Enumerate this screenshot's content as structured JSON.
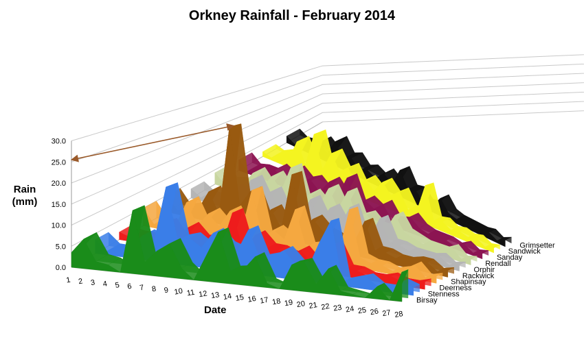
{
  "chart_data": {
    "type": "area",
    "title": "Orkney Rainfall - February 2014",
    "xlabel": "Date",
    "ylabel_line1": "Rain",
    "ylabel_line2": "(mm)",
    "ylim": [
      0,
      30
    ],
    "yticks": [
      "0.0",
      "5.0",
      "10.0",
      "15.0",
      "20.0",
      "25.0",
      "30.0"
    ],
    "categories": [
      "1",
      "2",
      "3",
      "4",
      "5",
      "6",
      "7",
      "8",
      "9",
      "10",
      "11",
      "12",
      "13",
      "14",
      "15",
      "16",
      "17",
      "18",
      "19",
      "20",
      "21",
      "22",
      "23",
      "24",
      "25",
      "26",
      "27",
      "28"
    ],
    "grid": true,
    "series": [
      {
        "name": "Birsay",
        "color": "#1a8c1a",
        "values": [
          3.5,
          7,
          2,
          1.5,
          0,
          15,
          3,
          6,
          8,
          2.5,
          0,
          6,
          12,
          3,
          3.5,
          7,
          1,
          0,
          6,
          7,
          2,
          6,
          1,
          0.5,
          0,
          3,
          0,
          7
        ]
      },
      {
        "name": "Stenness",
        "color": "#3a7ee8",
        "values": [
          3.5,
          1,
          1,
          3,
          6,
          5,
          19,
          6,
          7,
          5,
          9,
          6,
          5,
          11,
          4,
          5,
          7,
          4,
          3,
          10,
          16,
          1,
          2,
          3,
          1,
          1,
          3,
          2
        ]
      },
      {
        "name": "Deerness",
        "color": "#ee1c1c",
        "values": [
          2,
          1,
          1,
          1,
          6,
          2,
          6,
          3,
          4,
          2,
          12,
          2,
          7,
          4,
          4,
          3,
          5,
          2,
          3,
          8,
          2,
          2,
          1,
          1,
          2,
          1,
          1,
          2
        ]
      },
      {
        "name": "Shapinsay",
        "color": "#f5a840",
        "values": [
          5,
          1,
          1,
          2,
          9,
          3,
          7,
          4,
          9,
          3,
          16,
          3,
          6,
          4,
          13,
          3,
          4,
          2,
          3,
          16,
          3,
          2,
          2,
          1,
          2,
          4,
          1,
          2
        ]
      },
      {
        "name": "Rackwick",
        "color": "#995a10",
        "values": [
          5,
          1,
          2,
          3,
          9,
          3,
          30,
          7,
          12,
          4,
          8,
          3,
          20,
          4,
          8,
          5,
          4,
          2,
          4,
          11,
          3,
          3,
          2,
          2,
          3,
          3,
          1,
          2
        ]
      },
      {
        "name": "Orphir",
        "color": "#b5b5b5",
        "values": [
          3,
          1,
          1,
          2,
          6,
          3,
          11,
          5,
          9,
          3,
          6,
          3,
          10,
          4,
          9,
          4,
          11,
          2,
          3,
          10,
          3,
          3,
          2,
          2,
          2,
          3,
          1,
          2
        ]
      },
      {
        "name": "Rendall",
        "color": "#c8d6a0",
        "values": [
          4,
          1,
          2,
          3,
          8,
          4,
          9,
          5,
          14,
          3,
          7,
          4,
          11,
          5,
          12,
          4,
          6,
          3,
          3,
          9,
          4,
          3,
          2,
          2,
          2,
          4,
          1,
          2
        ]
      },
      {
        "name": "Sanday",
        "color": "#8c1452",
        "values": [
          4,
          1,
          2,
          2,
          5,
          3,
          7,
          4,
          6,
          3,
          8,
          4,
          12,
          3,
          6,
          4,
          7,
          2,
          3,
          6,
          3,
          2,
          2,
          2,
          1,
          3,
          1,
          2
        ]
      },
      {
        "name": "Sandwick",
        "color": "#f4f420",
        "values": [
          2,
          1,
          3,
          3,
          12,
          4,
          18,
          5,
          13,
          7,
          10,
          4,
          8,
          5,
          10,
          6,
          9,
          3,
          4,
          16,
          3,
          4,
          2,
          3,
          2,
          3,
          1,
          2
        ]
      },
      {
        "name": "Grimsetter",
        "color": "#111111",
        "values": [
          3,
          1,
          2,
          2,
          7,
          4,
          11,
          5,
          7,
          3,
          5,
          3,
          7,
          4,
          12,
          5,
          6,
          2,
          3,
          8,
          3,
          2,
          2,
          2,
          2,
          3,
          1,
          3
        ]
      }
    ]
  }
}
